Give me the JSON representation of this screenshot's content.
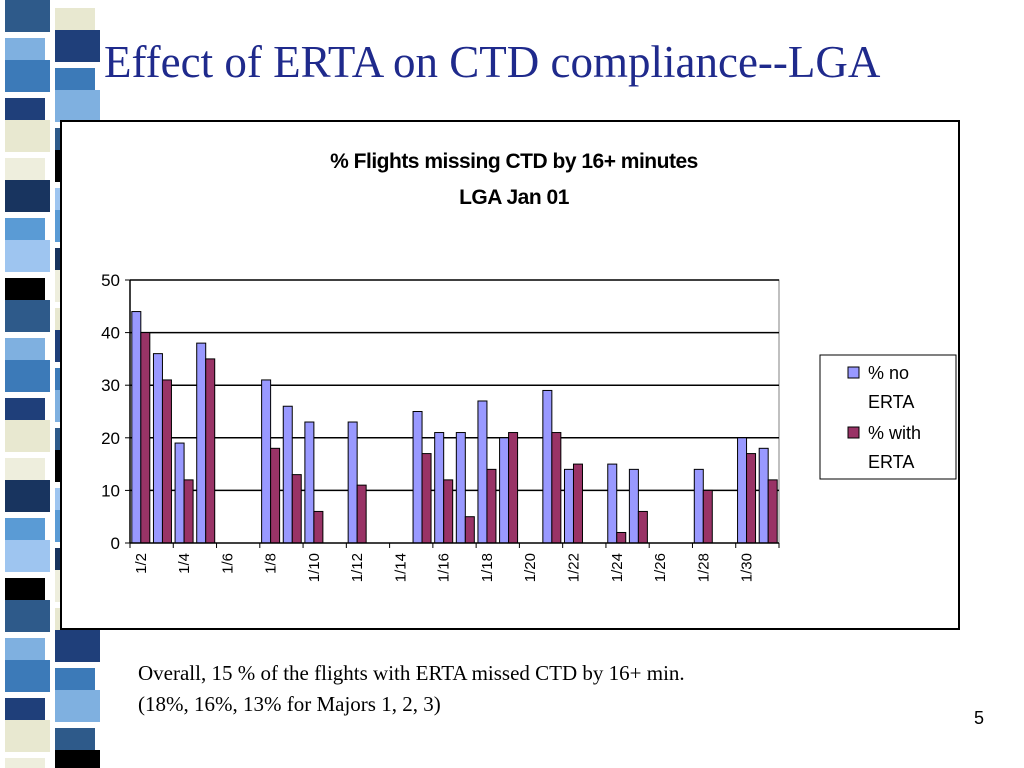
{
  "slide": {
    "title": "Effect of ERTA on CTD compliance--LGA",
    "footnote_line1": "Overall, 15 % of the flights with ERTA missed CTD by 16+ min.",
    "footnote_line2": "(18%, 16%, 13% for Majors 1, 2, 3)",
    "page_number": "5",
    "strip_colors": [
      "#2e5a8a",
      "#5a9bd5",
      "#e8e8d0",
      "#1f3f7a",
      "#9ec5f0",
      "#000000",
      "#3c7ab8",
      "#eeeedd",
      "#18345f",
      "#7fb0e0"
    ]
  },
  "chart_data": {
    "type": "bar",
    "title": "% Flights missing CTD by 16+ minutes",
    "subtitle": "LGA Jan 01",
    "xlabel": "",
    "ylabel": "",
    "ylim": [
      0,
      50
    ],
    "yticks": [
      0,
      10,
      20,
      30,
      40,
      50
    ],
    "grid": true,
    "legend": "right",
    "categories": [
      "1/2",
      "1/3",
      "1/4",
      "1/5",
      "1/6",
      "1/7",
      "1/8",
      "1/9",
      "1/10",
      "1/11",
      "1/12",
      "1/13",
      "1/14",
      "1/15",
      "1/16",
      "1/17",
      "1/18",
      "1/19",
      "1/20",
      "1/21",
      "1/22",
      "1/23",
      "1/24",
      "1/25",
      "1/26",
      "1/27",
      "1/28",
      "1/29",
      "1/30",
      "1/31"
    ],
    "tick_labels": [
      "1/2",
      "1/4",
      "1/6",
      "1/8",
      "1/10",
      "1/12",
      "1/14",
      "1/16",
      "1/18",
      "1/20",
      "1/22",
      "1/24",
      "1/26",
      "1/28",
      "1/30"
    ],
    "series": [
      {
        "name": "% no ERTA",
        "color": "#9999ff",
        "values": [
          44,
          36,
          19,
          38,
          0,
          0,
          31,
          26,
          23,
          0,
          23,
          0,
          0,
          25,
          21,
          21,
          27,
          20,
          0,
          29,
          14,
          0,
          15,
          14,
          0,
          0,
          14,
          0,
          20,
          18
        ]
      },
      {
        "name": "% with ERTA",
        "color": "#993366",
        "values": [
          40,
          31,
          12,
          35,
          0,
          0,
          18,
          13,
          6,
          0,
          11,
          0,
          0,
          17,
          12,
          5,
          14,
          21,
          0,
          21,
          15,
          0,
          2,
          6,
          0,
          0,
          10,
          0,
          17,
          12
        ]
      }
    ]
  }
}
